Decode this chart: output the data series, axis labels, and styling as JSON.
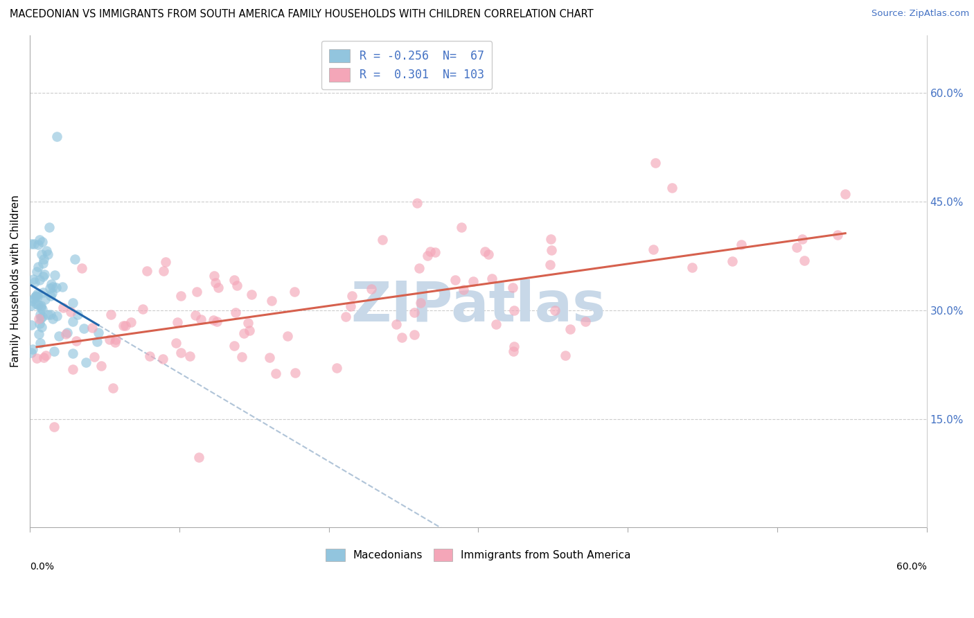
{
  "title": "MACEDONIAN VS IMMIGRANTS FROM SOUTH AMERICA FAMILY HOUSEHOLDS WITH CHILDREN CORRELATION CHART",
  "source": "Source: ZipAtlas.com",
  "ylabel": "Family Households with Children",
  "xmin": 0.0,
  "xmax": 0.6,
  "ymin": 0.0,
  "ymax": 0.68,
  "ytick_vals": [
    0.15,
    0.3,
    0.45,
    0.6
  ],
  "ytick_labels": [
    "15.0%",
    "30.0%",
    "45.0%",
    "60.0%"
  ],
  "color_blue": "#92c5de",
  "color_pink": "#f4a6b8",
  "color_blue_line": "#2166ac",
  "color_pink_line": "#d6604d",
  "color_dashed": "#b0c4d8",
  "watermark": "ZIPatlas",
  "watermark_color": "#c8d8e8",
  "background_color": "#ffffff",
  "grid_color": "#cccccc",
  "legend1_label": "R = -0.256  N=  67",
  "legend2_label": "R =  0.301  N= 103",
  "bottom_label1": "Macedonians",
  "bottom_label2": "Immigrants from South America"
}
